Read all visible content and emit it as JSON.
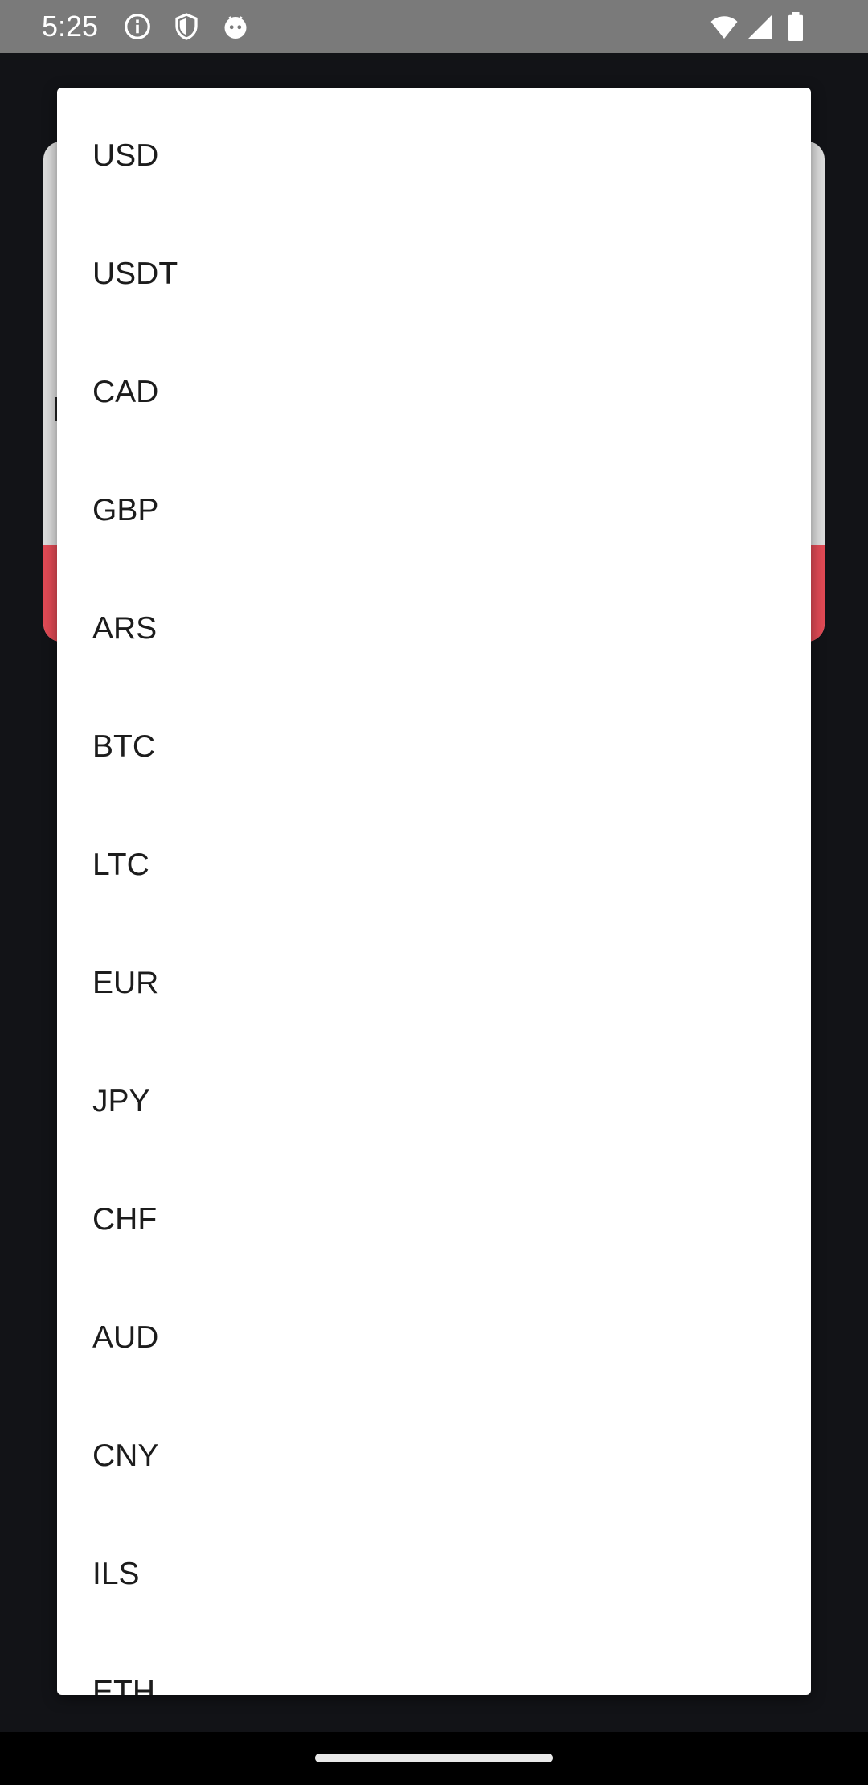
{
  "status_bar": {
    "time": "5:25",
    "left_icons": [
      "info-icon",
      "shield-icon",
      "android-face-icon"
    ],
    "right_icons": [
      "wifi-icon",
      "cell-signal-icon",
      "battery-icon"
    ]
  },
  "currency_menu": {
    "items": [
      {
        "label": "USD"
      },
      {
        "label": "USDT"
      },
      {
        "label": "CAD"
      },
      {
        "label": "GBP"
      },
      {
        "label": "ARS"
      },
      {
        "label": "BTC"
      },
      {
        "label": "LTC"
      },
      {
        "label": "EUR"
      },
      {
        "label": "JPY"
      },
      {
        "label": "CHF"
      },
      {
        "label": "AUD"
      },
      {
        "label": "CNY"
      },
      {
        "label": "ILS"
      },
      {
        "label": "ETH"
      }
    ]
  },
  "colors": {
    "accent_red": "#e24a55",
    "background": "#121317",
    "status_bar": "#7a7a7a"
  }
}
